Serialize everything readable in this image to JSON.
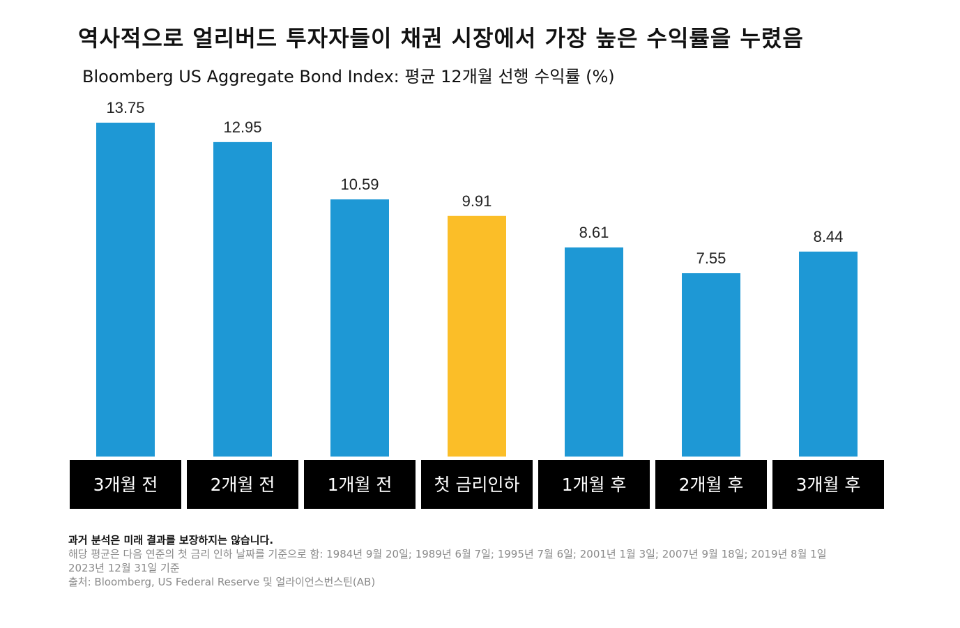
{
  "title": "역사적으로 얼리버드 투자자들이 채권 시장에서 가장 높은 수익률을 누렸음",
  "subtitle": "Bloomberg US Aggregate Bond Index: 평균 12개월 선행 수익률 (%)",
  "chart_data": {
    "type": "bar",
    "categories": [
      "3개월 전",
      "2개월 전",
      "1개월 전",
      "첫 금리인하",
      "1개월 후",
      "2개월 후",
      "3개월 후"
    ],
    "values": [
      13.75,
      12.95,
      10.59,
      9.91,
      8.61,
      7.55,
      8.44
    ],
    "value_labels": [
      "13.75",
      "12.95",
      "10.59",
      "9.91",
      "8.61",
      "7.55",
      "8.44"
    ],
    "ylim": [
      0,
      13.75
    ],
    "colors": {
      "default_bar": "#1E98D5",
      "highlight_bar": "#FBBE28",
      "category_box": "#000000",
      "category_text": "#FFFFFF"
    },
    "highlight_index": 3,
    "grid": false,
    "legend": "none"
  },
  "notes": {
    "disclaimer": "과거 분석은 미래 결과를 보장하지는 않습니다.",
    "lines": [
      "해당 평균은 다음 연준의 첫 금리 인하 날짜를 기준으로 함: 1984년 9월 20일; 1989년 6월 7일; 1995년 7월 6일; 2001년 1월 3일; 2007년 9월 18일; 2019년 8월 1일",
      "2023년 12월 31일 기준",
      "출처: Bloomberg, US Federal Reserve 및 얼라이언스번스틴(AB)"
    ]
  }
}
